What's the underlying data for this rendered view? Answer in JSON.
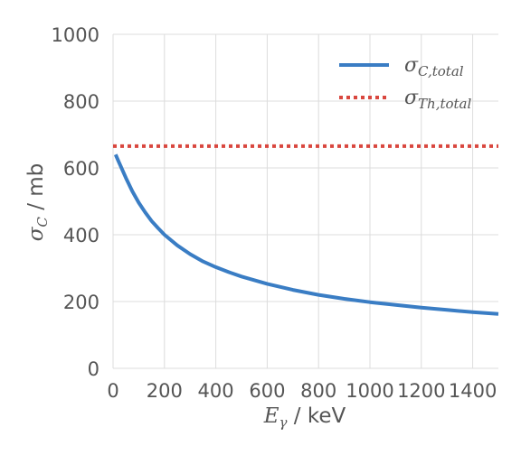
{
  "chart_data": {
    "type": "line",
    "title": "",
    "xlabel": {
      "sym": "E",
      "sub": "γ",
      "unit": " / keV"
    },
    "ylabel": {
      "sym": "σ",
      "sub": "C",
      "unit": " / mb"
    },
    "xlim": [
      0,
      1500
    ],
    "ylim": [
      0,
      1000
    ],
    "xticks": [
      "0",
      "200",
      "400",
      "600",
      "800",
      "1000",
      "1200",
      "1400"
    ],
    "yticks": [
      "0",
      "200",
      "400",
      "600",
      "800",
      "1000"
    ],
    "grid": true,
    "legend_position": "top-right",
    "series": [
      {
        "name": {
          "sym": "σ",
          "sub": "C,total"
        },
        "style": "solid",
        "color": "#3a7dc4",
        "x": [
          10,
          20,
          30,
          50,
          75,
          100,
          125,
          150,
          175,
          200,
          250,
          300,
          350,
          400,
          450,
          500,
          600,
          700,
          800,
          900,
          1000,
          1100,
          1200,
          1300,
          1400,
          1500
        ],
        "y": [
          640,
          622,
          605,
          570,
          530,
          496,
          467,
          441,
          420,
          400,
          368,
          342,
          320,
          303,
          288,
          275,
          253,
          235,
          220,
          208,
          198,
          190,
          182,
          175,
          168,
          163
        ]
      },
      {
        "name": {
          "sym": "σ",
          "sub": "Th,total"
        },
        "style": "dotted",
        "color": "#d9473f",
        "x": [
          0,
          1500
        ],
        "y": [
          665,
          665
        ]
      }
    ]
  }
}
